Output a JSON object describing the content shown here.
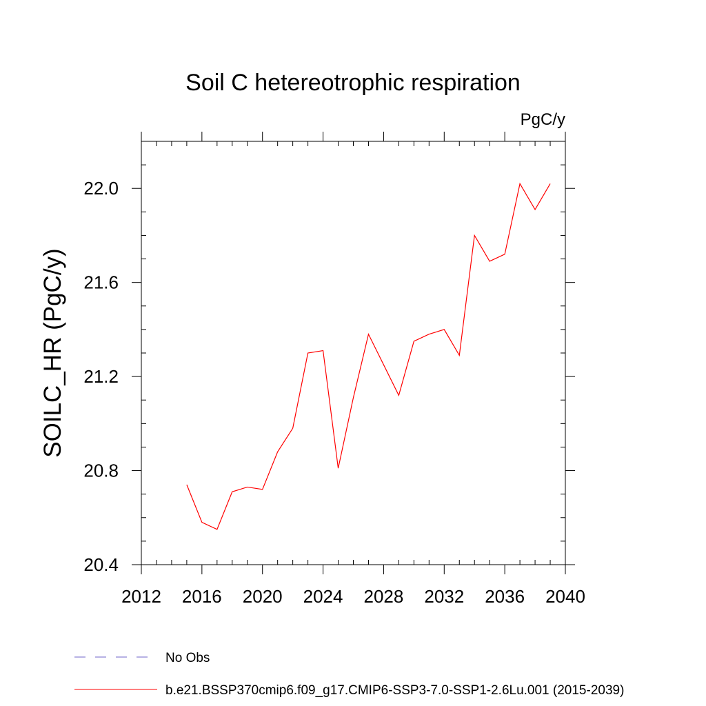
{
  "colors": {
    "series_line": "#ff0000",
    "obs_line": "#6f63c9",
    "axis": "#000000",
    "background": "#ffffff"
  },
  "chart_data": {
    "type": "line",
    "title": "Soil C hetereotrophic respiration",
    "units": "PgC/y",
    "xlabel": "",
    "ylabel": "SOILC_HR  (PgC/y)",
    "xlim": [
      2012,
      2040
    ],
    "ylim": [
      20.4,
      22.2
    ],
    "x_ticks": [
      2012,
      2016,
      2020,
      2024,
      2028,
      2032,
      2036,
      2040
    ],
    "x_tick_labels": [
      "2012",
      "2016",
      "2020",
      "2024",
      "2028",
      "2032",
      "2036",
      "2040"
    ],
    "y_ticks": [
      20.4,
      20.8,
      21.2,
      21.6,
      22.0
    ],
    "y_tick_labels": [
      "20.4",
      "20.8",
      "21.2",
      "21.6",
      "22.0"
    ],
    "y_minor_step": 0.1,
    "x_minor_step": 1,
    "grid": false,
    "legend_position": "bottom-left",
    "series": [
      {
        "name": "b.e21.BSSP370cmip6.f09_g17.CMIP6-SSP3-7.0-SSP1-2.6Lu.001 (2015-2039)",
        "style": "solid",
        "x": [
          2015,
          2016,
          2017,
          2018,
          2019,
          2020,
          2021,
          2022,
          2023,
          2024,
          2025,
          2026,
          2027,
          2028,
          2029,
          2030,
          2031,
          2032,
          2033,
          2034,
          2035,
          2036,
          2037,
          2038,
          2039
        ],
        "values": [
          20.74,
          20.58,
          20.55,
          20.71,
          20.73,
          20.72,
          20.88,
          20.98,
          21.3,
          21.31,
          20.81,
          21.11,
          21.38,
          21.25,
          21.12,
          21.35,
          21.38,
          21.4,
          21.29,
          21.8,
          21.69,
          21.72,
          22.02,
          21.91,
          22.02
        ]
      }
    ],
    "legend": [
      {
        "label": "No Obs",
        "style": "dashed"
      },
      {
        "label": "b.e21.BSSP370cmip6.f09_g17.CMIP6-SSP3-7.0-SSP1-2.6Lu.001 (2015-2039)",
        "style": "solid"
      }
    ]
  }
}
